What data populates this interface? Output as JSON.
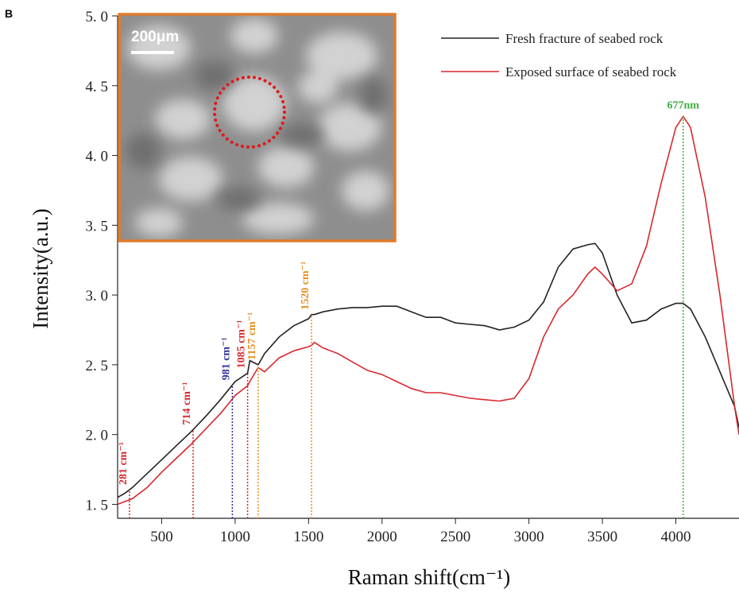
{
  "chart_data": {
    "type": "line",
    "panel_label": "B",
    "xlabel": "Raman shift(cm⁻¹)",
    "ylabel": "Intensity(a.u.)",
    "inset_scale_label": "200μm",
    "xlim": [
      200,
      4430
    ],
    "ylim": [
      1.4,
      5.0
    ],
    "xticks": [
      500,
      1000,
      1500,
      2000,
      2500,
      3000,
      3500,
      4000
    ],
    "yticks": [
      {
        "value": 1.5,
        "label": "1. 5"
      },
      {
        "value": 2.0,
        "label": "2. 0"
      },
      {
        "value": 2.5,
        "label": "2. 5"
      },
      {
        "value": 3.0,
        "label": "3. 0"
      },
      {
        "value": 3.5,
        "label": "3. 5"
      },
      {
        "value": 4.0,
        "label": "4. 0"
      },
      {
        "value": 4.5,
        "label": "4. 5"
      },
      {
        "value": 5.0,
        "label": "5. 0"
      }
    ],
    "legend_position": "upper right",
    "x": [
      200,
      250,
      300,
      400,
      500,
      600,
      700,
      800,
      900,
      1000,
      1085,
      1100,
      1157,
      1200,
      1300,
      1400,
      1500,
      1520,
      1540,
      1600,
      1700,
      1800,
      1900,
      2000,
      2100,
      2200,
      2300,
      2400,
      2500,
      2600,
      2700,
      2800,
      2900,
      3000,
      3100,
      3200,
      3300,
      3400,
      3450,
      3500,
      3600,
      3700,
      3800,
      3900,
      4000,
      4050,
      4100,
      4200,
      4300,
      4400,
      4430
    ],
    "series": [
      {
        "name": "Fresh fracture of seabed rock",
        "color": "#222222",
        "values": [
          1.55,
          1.58,
          1.62,
          1.72,
          1.82,
          1.92,
          2.02,
          2.13,
          2.25,
          2.38,
          2.44,
          2.53,
          2.5,
          2.58,
          2.7,
          2.78,
          2.83,
          2.86,
          2.86,
          2.88,
          2.9,
          2.91,
          2.91,
          2.92,
          2.92,
          2.88,
          2.84,
          2.84,
          2.8,
          2.79,
          2.78,
          2.75,
          2.77,
          2.82,
          2.95,
          3.2,
          3.33,
          3.36,
          3.37,
          3.3,
          3.0,
          2.8,
          2.82,
          2.9,
          2.94,
          2.94,
          2.9,
          2.7,
          2.45,
          2.2,
          2.05
        ]
      },
      {
        "name": "Exposed surface of seabed rock",
        "color": "#d8282e",
        "values": [
          1.5,
          1.52,
          1.54,
          1.62,
          1.73,
          1.83,
          1.93,
          2.04,
          2.15,
          2.28,
          2.35,
          2.38,
          2.48,
          2.45,
          2.55,
          2.6,
          2.63,
          2.64,
          2.66,
          2.62,
          2.58,
          2.52,
          2.46,
          2.43,
          2.38,
          2.33,
          2.3,
          2.3,
          2.28,
          2.26,
          2.25,
          2.24,
          2.26,
          2.4,
          2.7,
          2.9,
          3.0,
          3.15,
          3.2,
          3.15,
          3.03,
          3.08,
          3.35,
          3.8,
          4.2,
          4.28,
          4.2,
          3.7,
          3.0,
          2.2,
          2.0
        ]
      }
    ],
    "annotations": [
      {
        "x": 281,
        "text": "281 cm⁻¹",
        "color": "#d8282e"
      },
      {
        "x": 714,
        "text": "714 cm⁻¹",
        "color": "#d8282e"
      },
      {
        "x": 981,
        "text": "981 cm⁻¹",
        "color": "#2f2f9c"
      },
      {
        "x": 1085,
        "text": "1085 cm⁻¹",
        "color": "#d8282e"
      },
      {
        "x": 1157,
        "text": "1157 cm⁻¹",
        "color": "#e8901e"
      },
      {
        "x": 1520,
        "text": "1520 cm⁻¹",
        "color": "#e8901e"
      },
      {
        "x": 4050,
        "text": "677nm",
        "color": "#3cae3c"
      }
    ]
  }
}
